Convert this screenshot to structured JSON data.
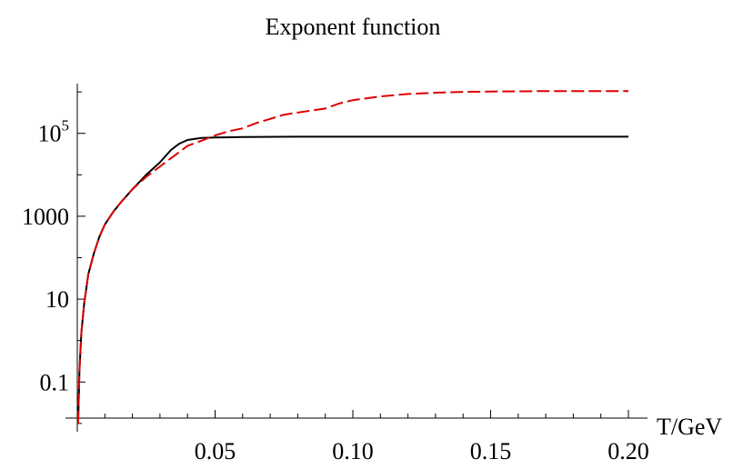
{
  "chart_data": {
    "type": "line",
    "title": "Exponent function",
    "xlabel": "T/GeV",
    "ylabel": "",
    "xlim": [
      0,
      0.2
    ],
    "y_scale": "log",
    "ylim_log10": [
      -2.2,
      6.2
    ],
    "grid": false,
    "legend": "none",
    "x_ticks": [
      {
        "value": 0.05,
        "label": "0.05"
      },
      {
        "value": 0.1,
        "label": "0.10"
      },
      {
        "value": 0.15,
        "label": "0.15"
      },
      {
        "value": 0.2,
        "label": "0.20"
      }
    ],
    "y_ticks": [
      {
        "log10": -1,
        "label": "0.1"
      },
      {
        "log10": 1,
        "label": "10"
      },
      {
        "log10": 3,
        "label": "1000"
      },
      {
        "log10": 5,
        "label": "10",
        "superscript": "5"
      }
    ],
    "series": [
      {
        "color": "#000000",
        "style": "solid",
        "points": [
          [
            0.0003,
            -2.0
          ],
          [
            0.0008,
            -0.7
          ],
          [
            0.0015,
            0.2
          ],
          [
            0.0025,
            0.9
          ],
          [
            0.004,
            1.6
          ],
          [
            0.006,
            2.1
          ],
          [
            0.008,
            2.5
          ],
          [
            0.01,
            2.8
          ],
          [
            0.013,
            3.1
          ],
          [
            0.016,
            3.35
          ],
          [
            0.02,
            3.65
          ],
          [
            0.025,
            4.0
          ],
          [
            0.03,
            4.3
          ],
          [
            0.034,
            4.6
          ],
          [
            0.037,
            4.75
          ],
          [
            0.04,
            4.84
          ],
          [
            0.045,
            4.89
          ],
          [
            0.05,
            4.9
          ],
          [
            0.06,
            4.91
          ],
          [
            0.08,
            4.92
          ],
          [
            0.1,
            4.92
          ],
          [
            0.15,
            4.92
          ],
          [
            0.2,
            4.92
          ]
        ]
      },
      {
        "color": "#dd0000",
        "style": "dashed",
        "points": [
          [
            0.0003,
            -2.0
          ],
          [
            0.0008,
            -0.7
          ],
          [
            0.0015,
            0.2
          ],
          [
            0.0025,
            0.9
          ],
          [
            0.004,
            1.6
          ],
          [
            0.006,
            2.1
          ],
          [
            0.008,
            2.5
          ],
          [
            0.01,
            2.8
          ],
          [
            0.013,
            3.1
          ],
          [
            0.016,
            3.35
          ],
          [
            0.02,
            3.65
          ],
          [
            0.025,
            3.95
          ],
          [
            0.03,
            4.2
          ],
          [
            0.035,
            4.45
          ],
          [
            0.04,
            4.7
          ],
          [
            0.045,
            4.82
          ],
          [
            0.05,
            4.95
          ],
          [
            0.055,
            5.05
          ],
          [
            0.06,
            5.12
          ],
          [
            0.065,
            5.25
          ],
          [
            0.07,
            5.35
          ],
          [
            0.075,
            5.45
          ],
          [
            0.08,
            5.5
          ],
          [
            0.085,
            5.55
          ],
          [
            0.09,
            5.6
          ],
          [
            0.095,
            5.72
          ],
          [
            0.1,
            5.8
          ],
          [
            0.11,
            5.89
          ],
          [
            0.12,
            5.95
          ],
          [
            0.13,
            5.98
          ],
          [
            0.14,
            6.0
          ],
          [
            0.15,
            6.01
          ],
          [
            0.17,
            6.02
          ],
          [
            0.2,
            6.02
          ]
        ]
      }
    ]
  }
}
